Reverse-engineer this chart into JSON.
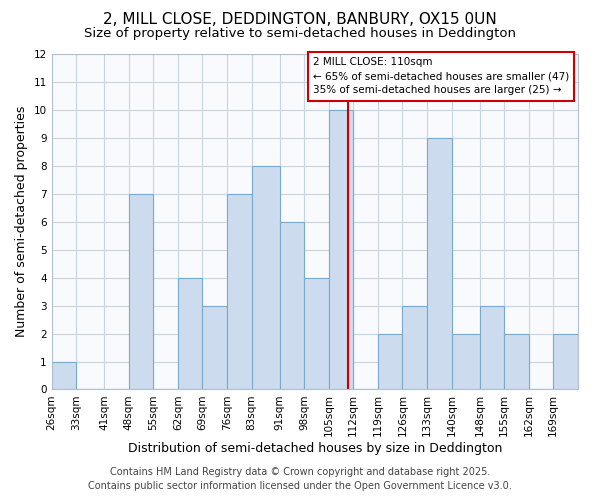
{
  "title": "2, MILL CLOSE, DEDDINGTON, BANBURY, OX15 0UN",
  "subtitle": "Size of property relative to semi-detached houses in Deddington",
  "xlabel": "Distribution of semi-detached houses by size in Deddington",
  "ylabel": "Number of semi-detached properties",
  "bin_edges": [
    26,
    33,
    41,
    48,
    55,
    62,
    69,
    76,
    83,
    91,
    98,
    105,
    112,
    119,
    126,
    133,
    140,
    148,
    155,
    162,
    169,
    176
  ],
  "counts": [
    1,
    0,
    0,
    7,
    0,
    4,
    3,
    7,
    8,
    6,
    4,
    10,
    0,
    2,
    3,
    9,
    2,
    3,
    2,
    0,
    2
  ],
  "bar_color": "#ccdcee",
  "bar_edgecolor": "#7aaaca",
  "reference_line_x": 110.5,
  "reference_line_color": "#cc0000",
  "ylim": [
    0,
    12
  ],
  "yticks": [
    0,
    1,
    2,
    3,
    4,
    5,
    6,
    7,
    8,
    9,
    10,
    11,
    12
  ],
  "xtick_labels": [
    "26sqm",
    "33sqm",
    "41sqm",
    "48sqm",
    "55sqm",
    "62sqm",
    "69sqm",
    "76sqm",
    "83sqm",
    "91sqm",
    "98sqm",
    "105sqm",
    "112sqm",
    "119sqm",
    "126sqm",
    "133sqm",
    "140sqm",
    "148sqm",
    "155sqm",
    "162sqm",
    "169sqm"
  ],
  "annotation_title": "2 MILL CLOSE: 110sqm",
  "annotation_line1": "← 65% of semi-detached houses are smaller (47)",
  "annotation_line2": "35% of semi-detached houses are larger (25) →",
  "footer1": "Contains HM Land Registry data © Crown copyright and database right 2025.",
  "footer2": "Contains public sector information licensed under the Open Government Licence v3.0.",
  "background_color": "#ffffff",
  "plot_bg_color": "#f8fafd",
  "grid_color": "#c8d4e4",
  "title_fontsize": 11,
  "subtitle_fontsize": 9.5,
  "axis_label_fontsize": 9,
  "tick_fontsize": 7.5,
  "footer_fontsize": 7
}
